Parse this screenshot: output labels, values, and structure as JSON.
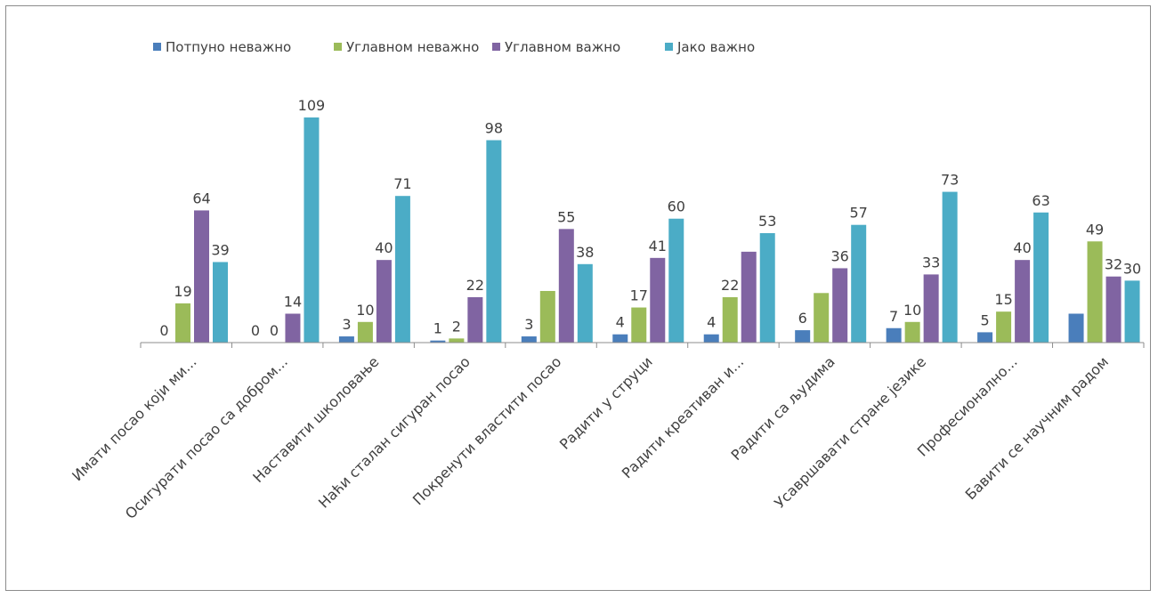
{
  "chart_data": {
    "type": "bar",
    "title": "",
    "xlabel": "",
    "ylabel": "",
    "ylim": [
      0,
      109
    ],
    "grid": false,
    "legend_position": "top",
    "categories": [
      "Имати посао који ми...",
      "Осигурати посао са добром...",
      "Наставити школовање",
      "Наћи сталан сигуран посао",
      "Покренути властити посао",
      "Радити у струци",
      "Радити креативан и...",
      "Радити са људима",
      "Усавршавати стране језике",
      "Професионално...",
      "Бавити се научним радом"
    ],
    "series": [
      {
        "name": "Потпуно неважно",
        "color": "#4a7ebb",
        "values": [
          0,
          0,
          3,
          1,
          3,
          4,
          4,
          6,
          7,
          5,
          14
        ],
        "labels": [
          "0",
          "0",
          "3",
          "1",
          "3",
          "4",
          "4",
          "6",
          "7",
          "5",
          ""
        ]
      },
      {
        "name": "Углавном неважно",
        "color": "#9bbb59",
        "values": [
          19,
          0,
          10,
          2,
          25,
          17,
          22,
          24,
          10,
          15,
          49
        ],
        "labels": [
          "19",
          "0",
          "10",
          "2",
          "",
          "17",
          "22",
          "",
          "10",
          "15",
          "49"
        ]
      },
      {
        "name": "Углавном важно",
        "color": "#8064a2",
        "values": [
          64,
          14,
          40,
          22,
          55,
          41,
          44,
          36,
          33,
          40,
          32
        ],
        "labels": [
          "64",
          "14",
          "40",
          "22",
          "55",
          "41",
          "",
          "36",
          "33",
          "40",
          "32"
        ]
      },
      {
        "name": "Јако важно",
        "color": "#4bacc6",
        "values": [
          39,
          109,
          71,
          98,
          38,
          60,
          53,
          57,
          73,
          63,
          30
        ],
        "labels": [
          "39",
          "109",
          "71",
          "98",
          "38",
          "60",
          "53",
          "57",
          "73",
          "63",
          "30"
        ]
      }
    ]
  }
}
